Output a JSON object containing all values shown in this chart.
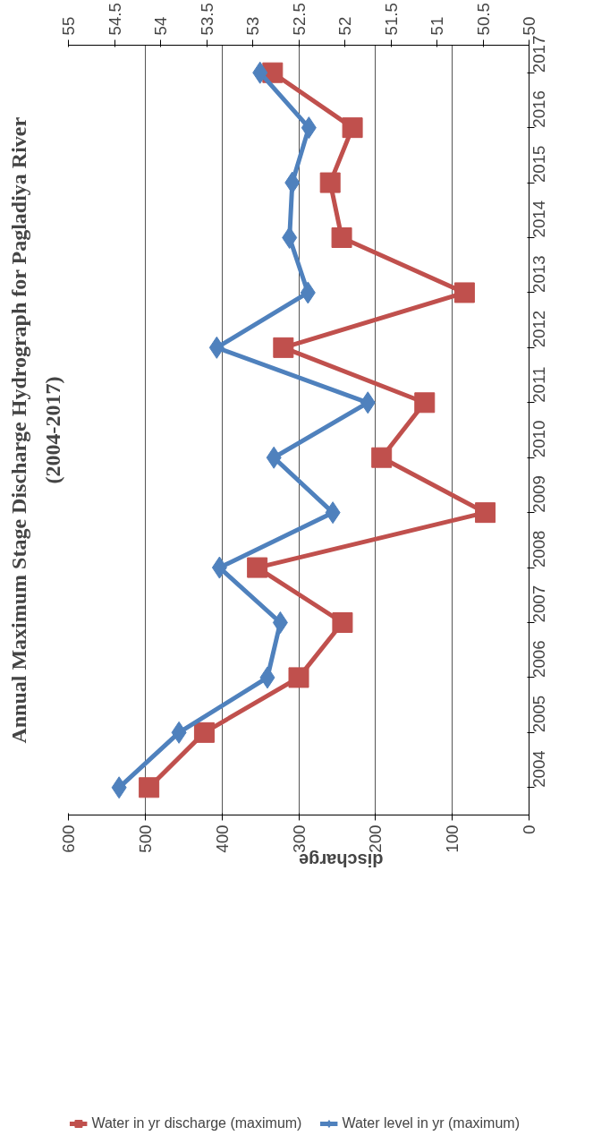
{
  "chart_data": {
    "type": "line",
    "orientation": "horizontal",
    "title": "Annual Maximum Stage Discharge Hydrograph for Pagladiya River",
    "subtitle": "(2004-2017)",
    "xlabel": "discharge",
    "categories": [
      "2017",
      "2016",
      "2015",
      "2014",
      "2013",
      "2012",
      "2011",
      "2010",
      "2009",
      "2008",
      "2007",
      "2006",
      "2005",
      "2004"
    ],
    "series": [
      {
        "name": "Water in yr discharge (maximum)",
        "color": "#c0504d",
        "marker": "square",
        "values": [
          334,
          230,
          259,
          244,
          84,
          320,
          136,
          192,
          57,
          354,
          243,
          300,
          423,
          495
        ]
      },
      {
        "name": "Water level in yr (maximum)",
        "color": "#4f81bd",
        "marker": "diamond",
        "axis": "x2",
        "values": [
          52.92,
          52.39,
          52.57,
          52.6,
          52.4,
          53.39,
          51.75,
          52.77,
          52.13,
          53.36,
          52.7,
          52.84,
          53.8,
          54.45
        ]
      }
    ],
    "xlim": [
      600,
      0
    ],
    "xticks": [
      0,
      100,
      200,
      300,
      400,
      500,
      600
    ],
    "x2lim": [
      55,
      50
    ],
    "x2ticks": [
      50,
      50.5,
      51,
      51.5,
      52,
      52.5,
      53,
      53.5,
      54,
      54.5,
      55
    ],
    "grid": "x",
    "legend": "bottom"
  }
}
